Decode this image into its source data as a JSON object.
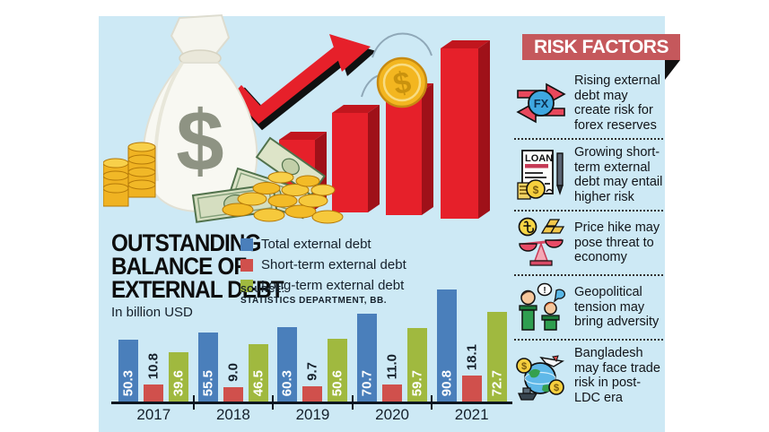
{
  "risk_panel": {
    "title": "RISK FACTORS",
    "items": [
      {
        "icon": "fx-arrows-icon",
        "text": "Rising external debt may create risk for forex reserves"
      },
      {
        "icon": "loan-document-icon",
        "text": "Growing short-term external debt may entail higher risk"
      },
      {
        "icon": "price-scale-icon",
        "text": "Price hike may pose threat to economy"
      },
      {
        "icon": "geopolitical-people-icon",
        "text": "Geopolitical tension may bring adversity"
      },
      {
        "icon": "global-trade-icon",
        "text": "Bangladesh may face trade risk in post-LDC era"
      }
    ]
  },
  "chart": {
    "title_lines": [
      "OUTSTANDING",
      "BALANCE OF",
      "EXTERNAL DEBT"
    ],
    "unit_label": "In billion USD",
    "source_label": "SOURCE:",
    "source_name": "STATISTICS DEPARTMENT, BB."
  },
  "chart_data": {
    "type": "bar",
    "title": "OUTSTANDING BALANCE OF EXTERNAL DEBT",
    "unit": "billion USD",
    "categories": [
      "2017",
      "2018",
      "2019",
      "2020",
      "2021"
    ],
    "series": [
      {
        "name": "Total external debt",
        "color": "#4a7fbb",
        "label_position": "inside",
        "values": [
          50.3,
          55.5,
          60.3,
          70.7,
          90.8
        ],
        "labels": [
          "50.3",
          "55.5",
          "60.3",
          "70.7",
          "90.8"
        ]
      },
      {
        "name": "Short-term external debt",
        "color": "#d0504c",
        "label_position": "above",
        "values": [
          10.8,
          9.0,
          9.7,
          11.0,
          18.1
        ],
        "labels": [
          "10.8",
          "9.0",
          "9.7",
          "11.0",
          "18.1"
        ]
      },
      {
        "name": "Long-term external debt",
        "color": "#a0b93f",
        "label_position": "inside",
        "values": [
          39.6,
          46.5,
          50.6,
          59.7,
          72.7
        ],
        "labels": [
          "39.6",
          "46.5",
          "50.6",
          "59.7",
          "72.7"
        ]
      }
    ],
    "legend_position": "top-right",
    "grid": false,
    "source": "STATISTICS DEPARTMENT, BB."
  },
  "illustration": {
    "bag_symbol": "$",
    "coin_symbol": "$"
  },
  "colors": {
    "panel_bg": "#cde9f5",
    "banner_bg": "#c5585c",
    "bar_blue": "#4a7fbb",
    "bar_red": "#d0504c",
    "bar_green": "#a0b93f"
  }
}
